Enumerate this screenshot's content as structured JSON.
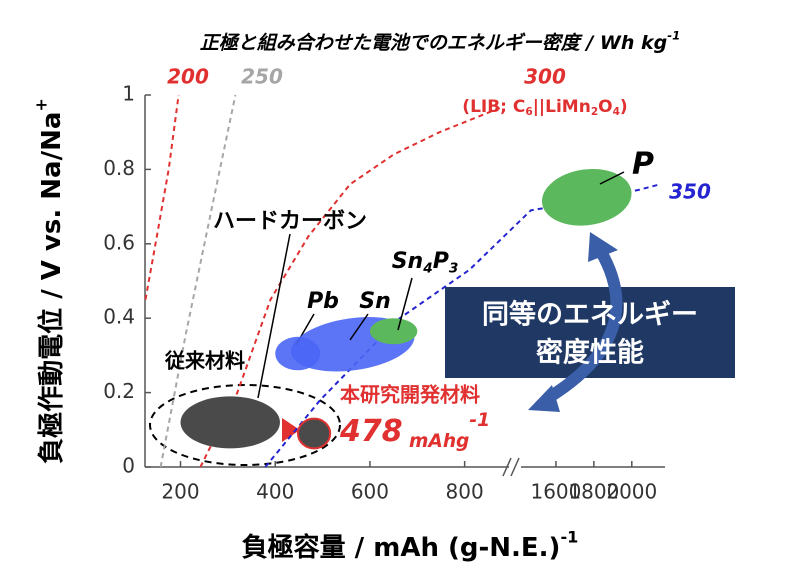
{
  "chart_data": {
    "type": "region-map",
    "title": [
      {
        "text": "正極と組み合わせた電池でのエネルギー密度 / Wh kg"
      },
      {
        "sup": "-1"
      }
    ],
    "x_label": [
      {
        "text": "負極容量 / mAh (g-N.E.)"
      },
      {
        "sup": "-1"
      }
    ],
    "y_label": [
      {
        "text": "負極作動電位 / V vs. Na/Na"
      },
      {
        "sup": "+"
      }
    ],
    "xlim": [
      125,
      900
    ],
    "xticks": [
      200,
      400,
      600,
      800
    ],
    "x2lim": [
      1400,
      2175
    ],
    "x2ticks": [
      1600,
      1800,
      2000
    ],
    "ylim": [
      0,
      1
    ],
    "yticks": [
      0,
      0.2,
      0.4,
      0.6,
      0.8,
      1
    ],
    "grid": false,
    "series": [
      {
        "name": "200",
        "color": "#e03030",
        "x": [
          126,
          150,
          175,
          196
        ],
        "values": [
          0.45,
          0.62,
          0.8,
          1.0
        ]
      },
      {
        "name": "250",
        "color": "#a6a6a6",
        "x": [
          158,
          210,
          270,
          316
        ],
        "values": [
          0,
          0.35,
          0.72,
          1.0
        ]
      },
      {
        "name": "300",
        "color": "#e03030",
        "note": [
          {
            "text": "(LIB; C"
          },
          {
            "sub": "6"
          },
          {
            "text": "||LiMn"
          },
          {
            "sub": "2"
          },
          {
            "text": "O"
          },
          {
            "sub": "4"
          },
          {
            "text": ")"
          }
        ],
        "x": [
          242,
          320,
          390,
          470,
          558,
          650,
          747,
          874
        ],
        "values": [
          0,
          0.2,
          0.45,
          0.62,
          0.76,
          0.84,
          0.9,
          0.965
        ]
      },
      {
        "name": "350",
        "color": "#2424d0",
        "x": [
          379,
          495,
          663,
          810,
          1468,
          1700,
          2036,
          2150
        ],
        "values": [
          0,
          0.18,
          0.4,
          0.53,
          0.69,
          0.71,
          0.745,
          0.76
        ]
      }
    ],
    "regions": [
      {
        "name": "ハードカーボン",
        "color": "#4a4a4a",
        "x": [
          200,
          410
        ],
        "y": [
          0.05,
          0.19
        ]
      },
      {
        "name": "本研究開発材料",
        "color": "#4a4a4a",
        "edge": "#e03030",
        "x": [
          448,
          516
        ],
        "y": [
          0.05,
          0.13
        ],
        "capacity_label": [
          {
            "text": "478"
          },
          {
            "sub": " mAhg"
          },
          {
            "sup": "-1"
          }
        ]
      },
      {
        "name": "Pb",
        "color": "#4a66f5",
        "x": [
          400,
          495
        ],
        "y": [
          0.26,
          0.35
        ]
      },
      {
        "name": "Sn",
        "color": "#4a66f5",
        "x": [
          432,
          695
        ],
        "y": [
          0.26,
          0.4
        ]
      },
      {
        "name": [
          {
            "text": "Sn"
          },
          {
            "sub": "4"
          },
          {
            "text": "P"
          },
          {
            "sub": "3"
          }
        ],
        "color": "#5cb85c",
        "x": [
          600,
          700
        ],
        "y": [
          0.33,
          0.4
        ]
      },
      {
        "name": "P",
        "color": "#5cb85c",
        "x": [
          1525,
          2000
        ],
        "y": [
          0.65,
          0.8
        ]
      }
    ],
    "group_note": "従来材料",
    "callout": [
      "同等のエネルギー",
      "密度性能"
    ]
  }
}
